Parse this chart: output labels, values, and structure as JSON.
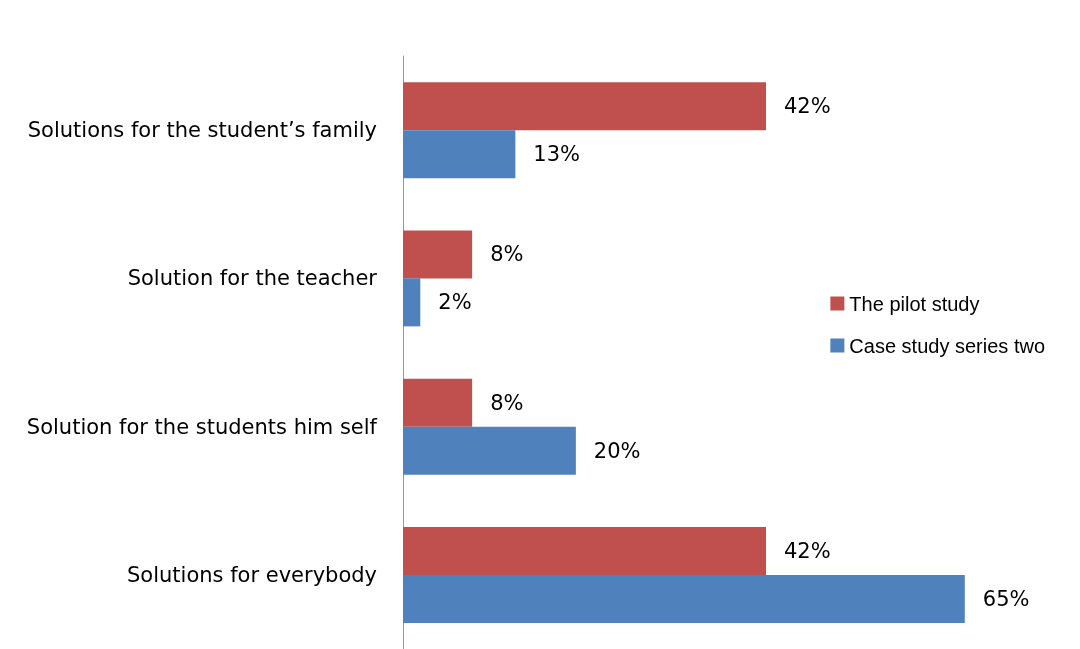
{
  "chart_data": {
    "type": "bar",
    "orientation": "horizontal",
    "categories": [
      "Solutions for the student’s family",
      "Solution for the teacher",
      "Solution for the students him self",
      "Solutions for everybody"
    ],
    "series": [
      {
        "name": "The pilot study",
        "color": "#c0504d",
        "values": [
          42,
          8,
          8,
          42
        ],
        "value_labels": [
          "42%",
          "8%",
          "8%",
          "42%"
        ]
      },
      {
        "name": "Case study series two",
        "color": "#4f81bd",
        "values": [
          13,
          2,
          20,
          65
        ],
        "value_labels": [
          "13%",
          "2%",
          "20%",
          "65%"
        ]
      }
    ],
    "legend": "right",
    "grid": false
  }
}
